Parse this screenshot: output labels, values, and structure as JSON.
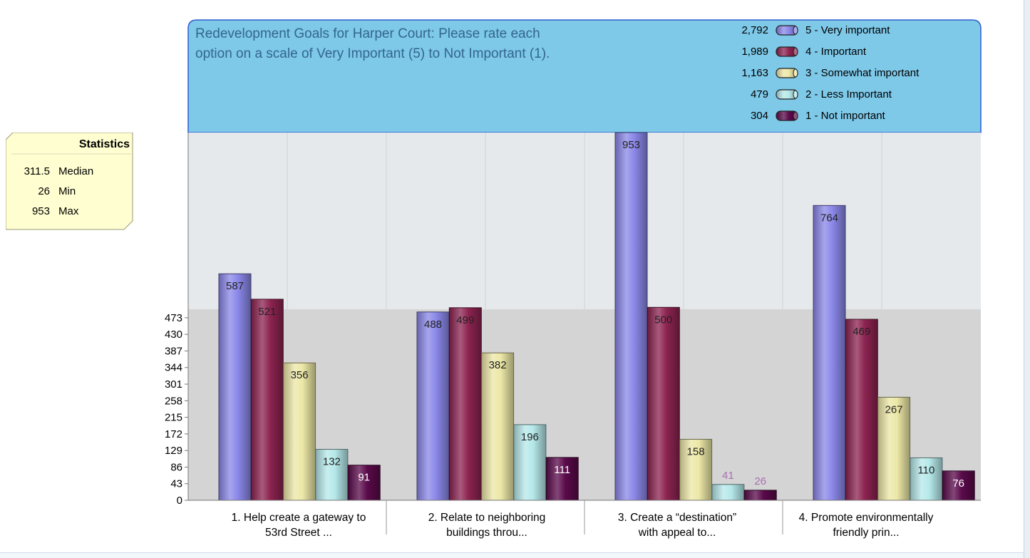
{
  "chart_data": {
    "type": "bar",
    "title": "Redevelopment Goals for Harper Court: Please rate each option on a scale of  Very Important (5) to Not Important (1).",
    "title_lines": [
      "Redevelopment Goals for Harper Court: Please rate each",
      "option on a scale of  Very Important (5) to Not Important (1)."
    ],
    "categories": [
      "1. Help create a gateway to 53rd Street ...",
      "2. Relate to neighboring buildings throu...",
      "3. Create a “destination” with appeal to...",
      "4. Promote environmentally friendly prin..."
    ],
    "category_lines": [
      [
        "1. Help create a gateway to",
        "53rd Street ..."
      ],
      [
        "2. Relate to neighboring",
        "buildings throu..."
      ],
      [
        "3. Create a “destination”",
        "with appeal to..."
      ],
      [
        "4. Promote environmentally",
        "friendly prin..."
      ]
    ],
    "series": [
      {
        "name": "5 - Very important",
        "total": "2,792",
        "color": "#8a87e8",
        "values": [
          587,
          488,
          953,
          764
        ]
      },
      {
        "name": "4 - Important",
        "total": "1,989",
        "color": "#8c2350",
        "values": [
          521,
          499,
          500,
          469
        ]
      },
      {
        "name": "3 - Somewhat important",
        "total": "1,163",
        "color": "#ece7a6",
        "values": [
          356,
          382,
          158,
          267
        ]
      },
      {
        "name": "2 - Less Important",
        "total": "479",
        "color": "#b5e8ea",
        "values": [
          132,
          196,
          41,
          110
        ]
      },
      {
        "name": "1 - Not important",
        "total": "304",
        "color": "#5a0a4a",
        "values": [
          91,
          111,
          26,
          76
        ]
      }
    ],
    "y_ticks": [
      0,
      43,
      86,
      129,
      172,
      215,
      258,
      301,
      344,
      387,
      430,
      473
    ],
    "ylim": [
      0,
      953
    ],
    "legend_position": "top-right",
    "grid": true
  },
  "statistics": {
    "title": "Statistics",
    "rows": [
      {
        "value": "311.5",
        "label": "Median"
      },
      {
        "value": "26",
        "label": "Min"
      },
      {
        "value": "953",
        "label": "Max"
      }
    ]
  },
  "colors": {
    "title_band": "#7ec8e8",
    "title_text": "#33668f",
    "plot_upper": "#e6e9ec",
    "plot_lower": "#d4d4d4",
    "stats_box": "#fffed0"
  }
}
